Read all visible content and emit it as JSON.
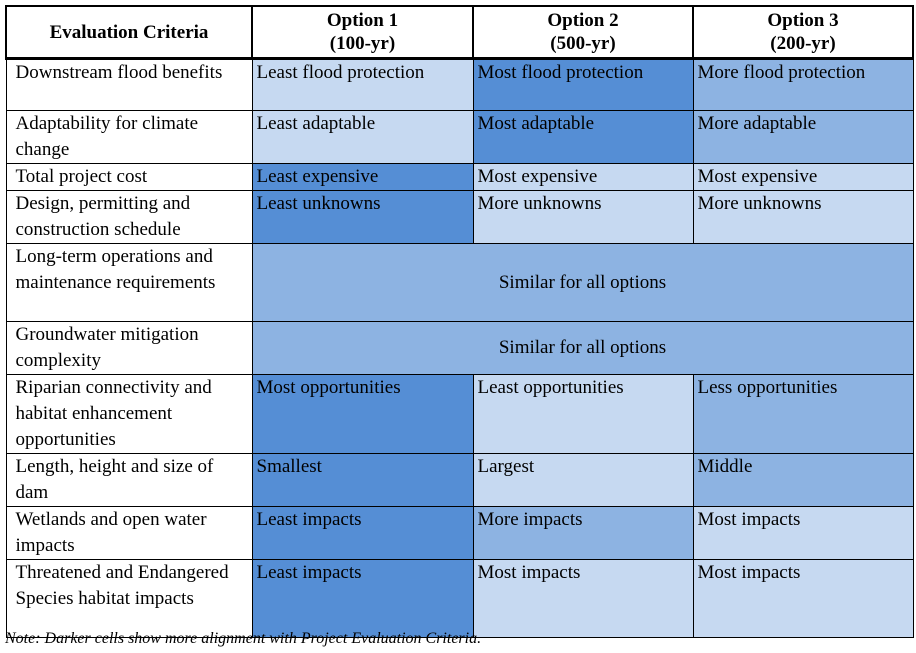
{
  "table": {
    "headers": [
      {
        "line1": "Evaluation Criteria",
        "line2": ""
      },
      {
        "line1": "Option 1",
        "line2": "(100-yr)"
      },
      {
        "line1": "Option 2",
        "line2": "(500-yr)"
      },
      {
        "line1": "Option 3",
        "line2": "(200-yr)"
      }
    ],
    "shading_levels": {
      "0": "#ffffff",
      "1": "#c6d9f1",
      "2": "#8db3e2",
      "3": "#558ed5"
    },
    "rows": [
      {
        "criterion": "Downstream flood benefits",
        "cells": [
          {
            "text": "Least flood protection",
            "level": 1
          },
          {
            "text": "Most flood protection",
            "level": 3
          },
          {
            "text": "More flood protection",
            "level": 2
          }
        ]
      },
      {
        "criterion": "Adaptability for climate change",
        "cells": [
          {
            "text": "Least adaptable",
            "level": 1
          },
          {
            "text": "Most adaptable",
            "level": 3
          },
          {
            "text": "More adaptable",
            "level": 2
          }
        ]
      },
      {
        "criterion": "Total project cost",
        "cells": [
          {
            "text": "Least expensive",
            "level": 3
          },
          {
            "text": "Most expensive",
            "level": 1
          },
          {
            "text": "Most expensive",
            "level": 1
          }
        ]
      },
      {
        "criterion": "Design, permitting and construction schedule",
        "cells": [
          {
            "text": "Least unknowns",
            "level": 3
          },
          {
            "text": "More unknowns",
            "level": 1
          },
          {
            "text": "More unknowns",
            "level": 1
          }
        ]
      },
      {
        "criterion": "Long-term operations and maintenance requirements",
        "span": {
          "text": "Similar for all options",
          "level": 2
        }
      },
      {
        "criterion": "Groundwater mitigation complexity",
        "span": {
          "text": "Similar for all options",
          "level": 2
        }
      },
      {
        "criterion": "Riparian connectivity and habitat enhancement opportunities",
        "cells": [
          {
            "text": "Most opportunities",
            "level": 3
          },
          {
            "text": "Least opportunities",
            "level": 1
          },
          {
            "text": "Less opportunities",
            "level": 2
          }
        ]
      },
      {
        "criterion": "Length, height and size of dam",
        "cells": [
          {
            "text": "Smallest",
            "level": 3
          },
          {
            "text": "Largest",
            "level": 1
          },
          {
            "text": "Middle",
            "level": 2
          }
        ]
      },
      {
        "criterion": "Wetlands and open water impacts",
        "cells": [
          {
            "text": "Least impacts",
            "level": 3
          },
          {
            "text": "More impacts",
            "level": 2
          },
          {
            "text": "Most impacts",
            "level": 1
          }
        ]
      },
      {
        "criterion": "Threatened and Endangered Species habitat impacts",
        "cells": [
          {
            "text": "Least impacts",
            "level": 3
          },
          {
            "text": "Most impacts",
            "level": 1
          },
          {
            "text": "Most impacts",
            "level": 1
          }
        ]
      }
    ]
  },
  "note": "Note: Darker cells show more alignment with Project Evaluation Criteria."
}
